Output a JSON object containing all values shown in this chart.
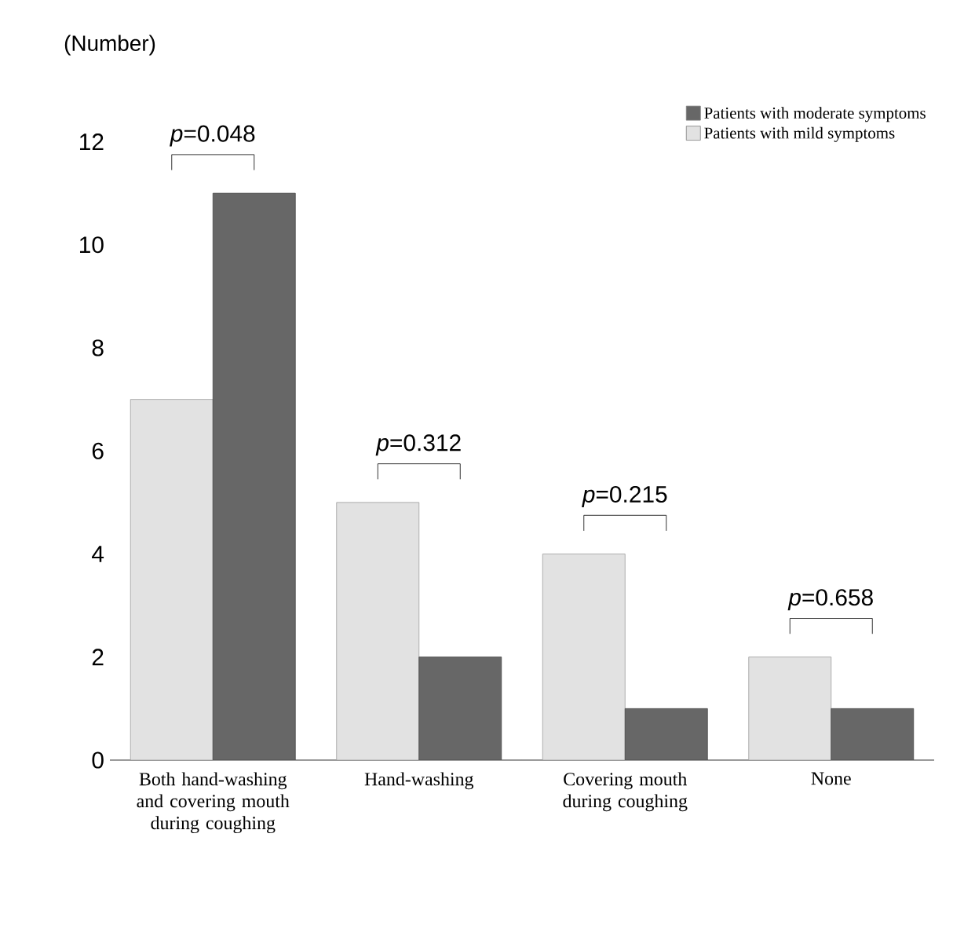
{
  "chart_data": {
    "type": "bar",
    "ylabel": "(Number)",
    "categories": [
      "Both hand-washing and covering mouth during coughing",
      "Hand-washing",
      "Covering mouth during coughing",
      "None"
    ],
    "series": [
      {
        "name": "Patients with mild symptoms",
        "color": "#e2e2e2",
        "values": [
          7,
          5,
          4,
          2
        ]
      },
      {
        "name": "Patients with moderate symptoms",
        "color": "#676767",
        "values": [
          11,
          2,
          1,
          1
        ]
      }
    ],
    "ylim": [
      0,
      12.8
    ],
    "yticks": [
      0,
      2,
      4,
      6,
      8,
      10,
      12
    ],
    "legend": "top right",
    "annotations": [
      "*p*=0.048",
      "*p*=0.312",
      "*p*=0.215",
      "*p*=0.658"
    ]
  }
}
